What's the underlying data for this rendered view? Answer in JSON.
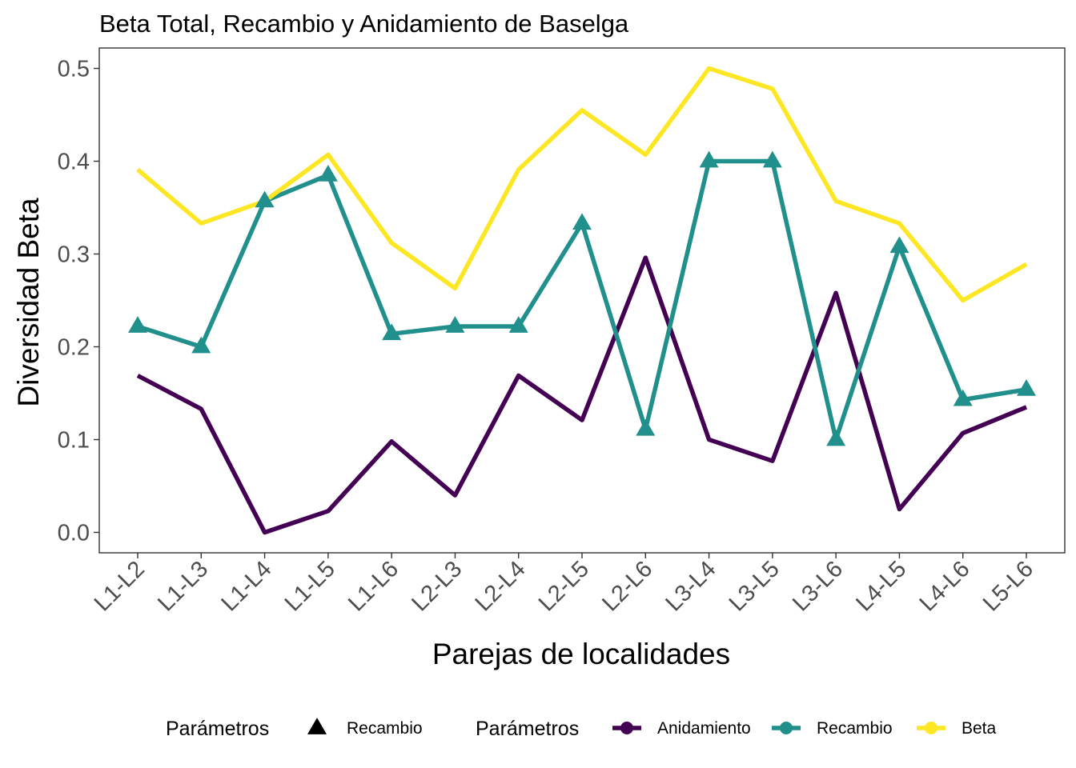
{
  "chart_data": {
    "type": "line",
    "title": "Beta Total, Recambio y Anidamiento de Baselga",
    "xlabel": "Parejas de localidades",
    "ylabel": "Diversidad Beta",
    "categories": [
      "L1-L2",
      "L1-L3",
      "L1-L4",
      "L1-L5",
      "L1-L6",
      "L2-L3",
      "L2-L4",
      "L2-L5",
      "L2-L6",
      "L3-L4",
      "L3-L5",
      "L3-L6",
      "L4-L5",
      "L4-L6",
      "L5-L6"
    ],
    "ylim": [
      -0.022,
      0.522
    ],
    "yticks": [
      0.0,
      0.1,
      0.2,
      0.3,
      0.4,
      0.5
    ],
    "ytick_labels": [
      "0.0",
      "0.1",
      "0.2",
      "0.3",
      "0.4",
      "0.5"
    ],
    "grid": false,
    "series": [
      {
        "name": "Anidamiento",
        "color": "#440154",
        "marker": "none",
        "values": [
          0.169,
          0.133,
          0.0,
          0.023,
          0.098,
          0.04,
          0.169,
          0.121,
          0.296,
          0.1,
          0.077,
          0.258,
          0.025,
          0.107,
          0.135
        ]
      },
      {
        "name": "Recambio",
        "color": "#21908C",
        "marker": "triangle",
        "values": [
          0.222,
          0.2,
          0.357,
          0.385,
          0.214,
          0.222,
          0.222,
          0.333,
          0.111,
          0.4,
          0.4,
          0.1,
          0.308,
          0.143,
          0.154
        ]
      },
      {
        "name": "Beta",
        "color": "#FDE725",
        "marker": "none",
        "values": [
          0.391,
          0.333,
          0.357,
          0.407,
          0.312,
          0.263,
          0.391,
          0.455,
          0.407,
          0.5,
          0.478,
          0.357,
          0.333,
          0.25,
          0.289
        ]
      }
    ],
    "legend": {
      "position": "bottom",
      "shape_title": "Parámetros",
      "shape_items": [
        {
          "label": "Recambio",
          "shape": "triangle"
        }
      ],
      "color_title": "Parámetros",
      "color_items": [
        {
          "label": "Anidamiento",
          "color": "#440154"
        },
        {
          "label": "Recambio",
          "color": "#21908C"
        },
        {
          "label": "Beta",
          "color": "#FDE725"
        }
      ]
    }
  }
}
